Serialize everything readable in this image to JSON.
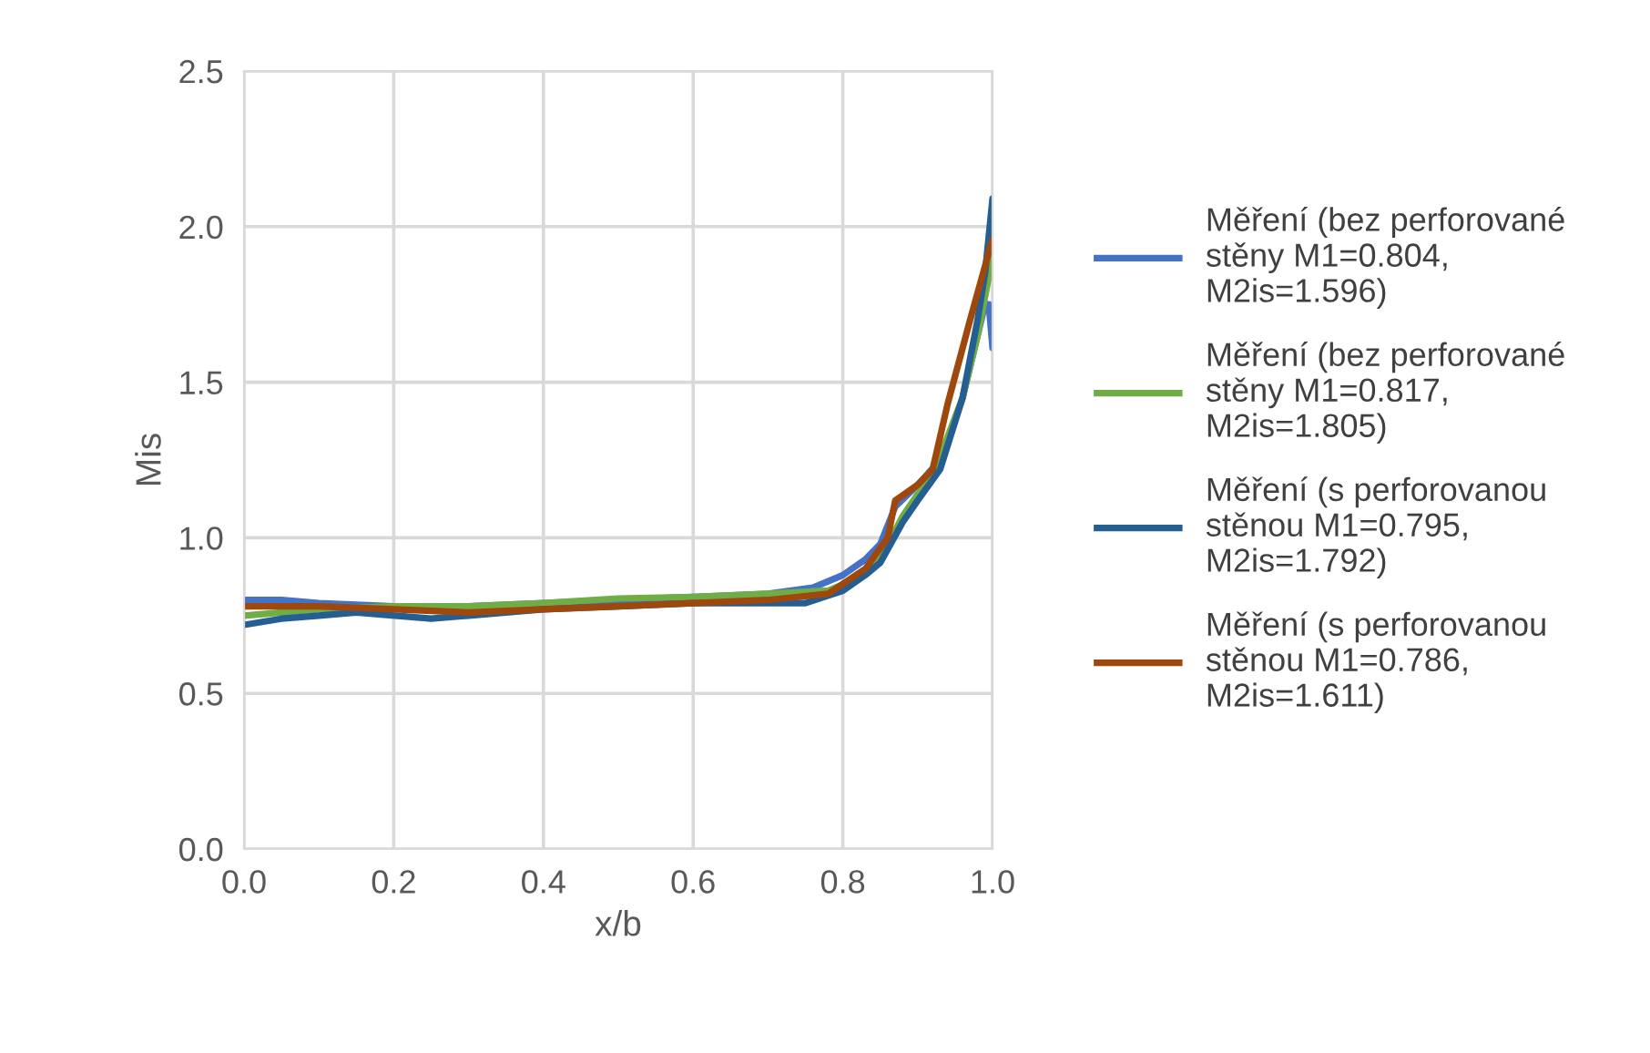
{
  "chart_data": {
    "type": "line",
    "xlabel": "x/b",
    "ylabel": "Mis",
    "xlim": [
      0,
      1
    ],
    "xticks": [
      {
        "value": 0,
        "label": "0.0"
      },
      {
        "value": 0.2,
        "label": "0.2"
      },
      {
        "value": 0.4,
        "label": "0.4"
      },
      {
        "value": 0.6,
        "label": "0.6"
      },
      {
        "value": 0.8,
        "label": "0.8"
      },
      {
        "value": 1,
        "label": "1.0"
      }
    ],
    "ylim": [
      0,
      2.5
    ],
    "yticks": [
      {
        "value": 0,
        "label": "0.0"
      },
      {
        "value": 0.5,
        "label": "0.5"
      },
      {
        "value": 1,
        "label": "1.0"
      },
      {
        "value": 1.5,
        "label": "1.5"
      },
      {
        "value": 2,
        "label": "2.0"
      },
      2.5
    ],
    "grid": true,
    "legend": "right",
    "marker": "none",
    "line_style": "solid",
    "series": [
      {
        "name": "Měření (bez perforované stěny M1=0.804, M2is=1.596)",
        "color": "#4472c4",
        "x": [
          0,
          0.05,
          0.1,
          0.2,
          0.3,
          0.4,
          0.5,
          0.6,
          0.7,
          0.76,
          0.8,
          0.83,
          0.85,
          0.87,
          0.9,
          0.93,
          0.96,
          0.98,
          0.99,
          0.995,
          1.0
        ],
        "values": [
          0.8,
          0.8,
          0.79,
          0.78,
          0.78,
          0.79,
          0.8,
          0.81,
          0.82,
          0.84,
          0.88,
          0.93,
          0.98,
          1.1,
          1.17,
          1.25,
          1.45,
          1.65,
          1.75,
          1.75,
          1.61
        ]
      },
      {
        "name": "Měření (bez perforované stěny M1=0.817, M2is=1.805)",
        "color": "#70ad47",
        "x": [
          0,
          0.05,
          0.1,
          0.2,
          0.3,
          0.4,
          0.5,
          0.6,
          0.7,
          0.78,
          0.82,
          0.85,
          0.88,
          0.9,
          0.92,
          0.96,
          0.98,
          1.0
        ],
        "values": [
          0.75,
          0.76,
          0.77,
          0.78,
          0.78,
          0.79,
          0.805,
          0.81,
          0.82,
          0.83,
          0.87,
          0.93,
          1.07,
          1.14,
          1.2,
          1.45,
          1.65,
          1.9
        ]
      },
      {
        "name": "Měření (s perforovanou stěnou M1=0.795, M2is=1.792)",
        "color": "#255e91",
        "x": [
          0,
          0.05,
          0.1,
          0.15,
          0.25,
          0.3,
          0.4,
          0.5,
          0.6,
          0.75,
          0.8,
          0.83,
          0.85,
          0.88,
          0.9,
          0.93,
          0.96,
          0.98,
          0.99,
          1.0
        ],
        "values": [
          0.72,
          0.74,
          0.75,
          0.76,
          0.74,
          0.75,
          0.77,
          0.78,
          0.79,
          0.79,
          0.83,
          0.88,
          0.92,
          1.05,
          1.12,
          1.22,
          1.45,
          1.7,
          1.85,
          2.09
        ]
      },
      {
        "name": "Měření (s perforovanou stěnou M1=0.786, M2is=1.611)",
        "color": "#9e480e",
        "x": [
          0,
          0.1,
          0.2,
          0.3,
          0.4,
          0.5,
          0.6,
          0.7,
          0.78,
          0.83,
          0.86,
          0.87,
          0.9,
          0.92,
          0.94,
          0.97,
          1.0
        ],
        "values": [
          0.78,
          0.78,
          0.77,
          0.76,
          0.77,
          0.78,
          0.79,
          0.8,
          0.82,
          0.9,
          1.0,
          1.12,
          1.17,
          1.22,
          1.43,
          1.7,
          1.96
        ]
      }
    ]
  }
}
